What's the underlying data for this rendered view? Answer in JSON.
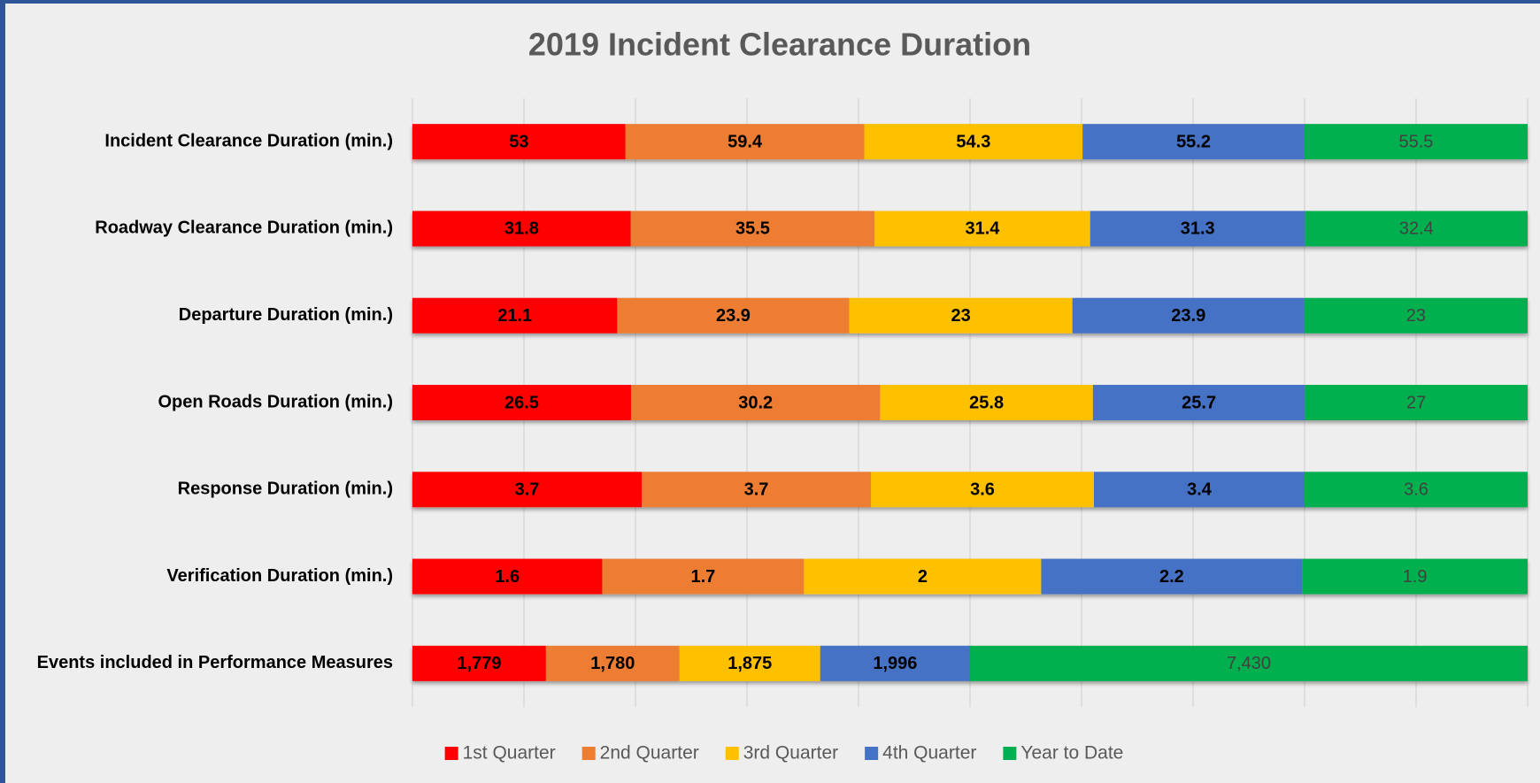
{
  "chart_data": {
    "type": "stacked_percent_bar_horizontal",
    "title": "2019 Incident Clearance Duration",
    "categories": [
      "Incident Clearance Duration (min.)",
      "Roadway Clearance Duration (min.)",
      "Departure Duration (min.)",
      "Open Roads Duration (min.)",
      "Response Duration (min.)",
      "Verification Duration (min.)",
      "Events included in Performance Measures"
    ],
    "series": [
      {
        "name": "1st Quarter",
        "color": "#ff0000",
        "values": [
          53,
          31.8,
          21.1,
          26.5,
          3.7,
          1.6,
          1779
        ],
        "value_labels": [
          "53",
          "31.8",
          "21.1",
          "26.5",
          "3.7",
          "1.6",
          "1,779"
        ]
      },
      {
        "name": "2nd Quarter",
        "color": "#ed7d31",
        "values": [
          59.4,
          35.5,
          23.9,
          30.2,
          3.7,
          1.7,
          1780
        ],
        "value_labels": [
          "59.4",
          "35.5",
          "23.9",
          "30.2",
          "3.7",
          "1.7",
          "1,780"
        ]
      },
      {
        "name": "3rd Quarter",
        "color": "#ffc000",
        "values": [
          54.3,
          31.4,
          23,
          25.8,
          3.6,
          2,
          1875
        ],
        "value_labels": [
          "54.3",
          "31.4",
          "23",
          "25.8",
          "3.6",
          "2",
          "1,875"
        ]
      },
      {
        "name": "4th Quarter",
        "color": "#4472c4",
        "values": [
          55.2,
          31.3,
          23.9,
          25.7,
          3.4,
          2.2,
          1996
        ],
        "value_labels": [
          "55.2",
          "31.3",
          "23.9",
          "25.7",
          "3.4",
          "2.2",
          "1,996"
        ]
      },
      {
        "name": "Year to Date",
        "color": "#00b050",
        "values": [
          55.5,
          32.4,
          23,
          27,
          3.6,
          1.9,
          7430
        ],
        "value_labels": [
          "55.5",
          "32.4",
          "23",
          "27",
          "3.6",
          "1.9",
          "7,430"
        ]
      }
    ],
    "xlim": [
      0,
      100
    ],
    "xticks": [
      0,
      10,
      20,
      30,
      40,
      50,
      60,
      70,
      80,
      90,
      100
    ],
    "show_tick_labels": false,
    "grid": true,
    "legend": "bottom"
  }
}
